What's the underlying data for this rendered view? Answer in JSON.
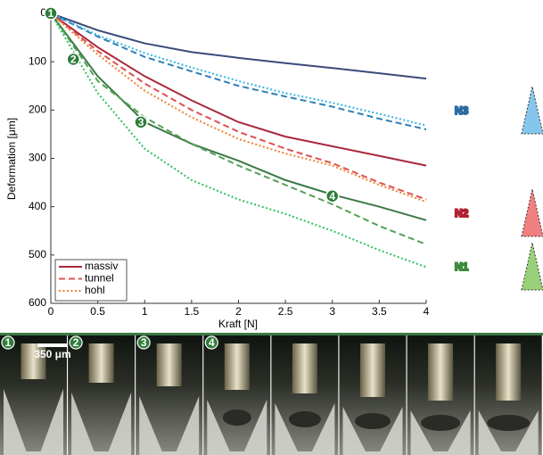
{
  "chart_data": {
    "type": "line",
    "xlabel": "Kraft [N]",
    "ylabel": "Deformation [μm]",
    "x": [
      0,
      0.5,
      1,
      1.5,
      2,
      2.5,
      3,
      3.5,
      4
    ],
    "xlim": [
      0,
      4
    ],
    "xticks": [
      0,
      0.5,
      1,
      1.5,
      2,
      2.5,
      3,
      3.5,
      4
    ],
    "ylim": [
      0,
      600
    ],
    "yticks": [
      0,
      100,
      200,
      300,
      400,
      500,
      600
    ],
    "y_inverted": true,
    "legend": [
      {
        "name": "massiv",
        "color": "#a8283d",
        "dash": "solid"
      },
      {
        "name": "tunnel",
        "color": "#e05050",
        "dash": "dashed"
      },
      {
        "name": "hohl",
        "color": "#f08030",
        "dash": "dotted"
      }
    ],
    "groups": [
      {
        "label": "N3",
        "fill": "#86c6ec",
        "stroke": "#2a6aa0",
        "series": [
          {
            "color": "#3a4a7a",
            "dash": "solid",
            "values": [
              0,
              35,
              62,
              80,
              92,
              103,
              113,
              124,
              135
            ]
          },
          {
            "color": "#2f7fb5",
            "dash": "dashed",
            "values": [
              0,
              48,
              90,
              120,
              150,
              172,
              193,
              218,
              240
            ]
          },
          {
            "color": "#35b5e0",
            "dash": "dotted",
            "values": [
              0,
              45,
              82,
              112,
              140,
              165,
              185,
              208,
              232
            ]
          }
        ]
      },
      {
        "label": "N2",
        "fill": "#f08080",
        "stroke": "#b02030",
        "series": [
          {
            "color": "#a8283d",
            "dash": "solid",
            "values": [
              0,
              70,
              130,
              180,
              225,
              255,
              275,
              295,
              315
            ]
          },
          {
            "color": "#e05050",
            "dash": "dashed",
            "values": [
              0,
              78,
              145,
              200,
              245,
              280,
              310,
              350,
              385
            ]
          },
          {
            "color": "#f08030",
            "dash": "dotted",
            "values": [
              0,
              85,
              160,
              215,
              260,
              290,
              315,
              355,
              390
            ]
          }
        ]
      },
      {
        "label": "N1",
        "fill": "#9ad07a",
        "stroke": "#3a8a3a",
        "series": [
          {
            "color": "#3a7a45",
            "dash": "solid",
            "values": [
              0,
              130,
              225,
              270,
              305,
              345,
              375,
              400,
              428
            ]
          },
          {
            "color": "#55a055",
            "dash": "dashed",
            "values": [
              0,
              140,
              215,
              270,
              315,
              355,
              395,
              440,
              478
            ]
          },
          {
            "color": "#30c060",
            "dash": "dotted",
            "values": [
              0,
              165,
              280,
              345,
              385,
              415,
              450,
              490,
              525
            ]
          }
        ]
      }
    ],
    "markers": [
      {
        "label": "1",
        "x": 0,
        "y": 0
      },
      {
        "label": "2",
        "x": 0.24,
        "y": 95
      },
      {
        "label": "3",
        "x": 0.96,
        "y": 225
      },
      {
        "label": "4",
        "x": 3,
        "y": 378
      }
    ]
  },
  "photos": {
    "labels": [
      "1",
      "2",
      "3",
      "4"
    ],
    "scale_bar": "350 μm"
  }
}
